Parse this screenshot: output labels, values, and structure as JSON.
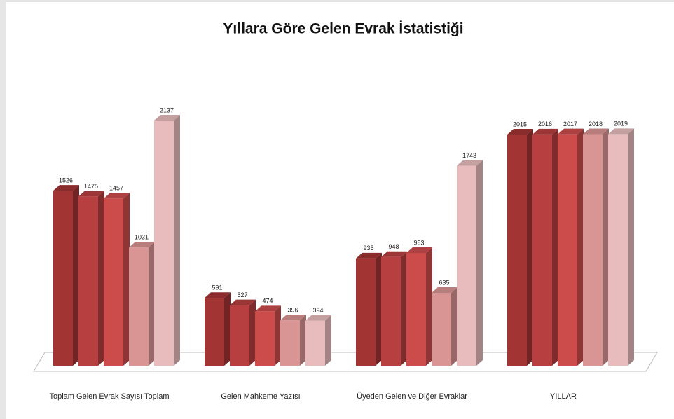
{
  "chart_data": {
    "type": "bar3d",
    "title": "Yıllara Göre Gelen Evrak İstatistiği",
    "categories": [
      "Toplam Gelen Evrak Sayısı Toplam",
      "Gelen Mahkeme Yazısı",
      "Üyeden Gelen ve Diğer Evraklar",
      "YILLAR"
    ],
    "series": [
      {
        "color": "#a33434",
        "values": [
          1526,
          591,
          935,
          2015
        ]
      },
      {
        "color": "#b83f3f",
        "values": [
          1475,
          527,
          948,
          2016
        ]
      },
      {
        "color": "#cc4b4b",
        "values": [
          1457,
          474,
          983,
          2017
        ]
      },
      {
        "color": "#d99494",
        "values": [
          1031,
          396,
          635,
          2018
        ]
      },
      {
        "color": "#e8bcbc",
        "values": [
          2137,
          394,
          1743,
          2019
        ]
      }
    ]
  }
}
